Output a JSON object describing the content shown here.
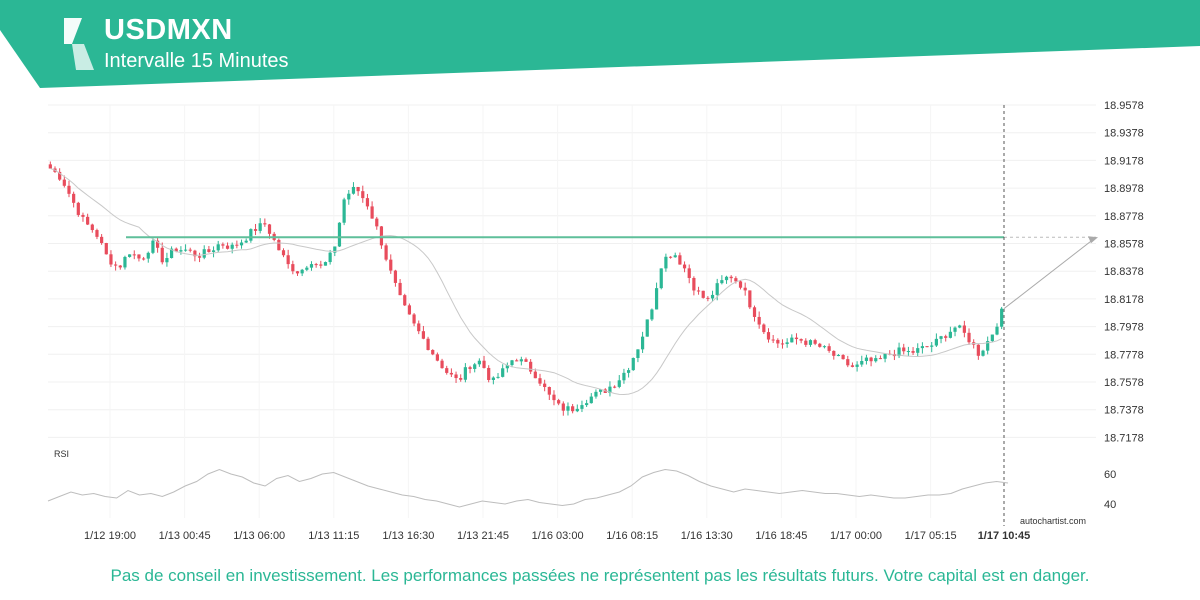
{
  "header": {
    "symbol": "USDMXN",
    "interval": "Intervalle 15 Minutes",
    "brand_color": "#2bb795"
  },
  "chart_data": {
    "type": "candlestick",
    "price_axis_ticks": [
      18.9578,
      18.9378,
      18.9178,
      18.8978,
      18.8778,
      18.8578,
      18.8378,
      18.8178,
      18.7978,
      18.7778,
      18.7578,
      18.7378,
      18.7178
    ],
    "time_axis_labels": [
      "1/12 19:00",
      "1/13 00:45",
      "1/13 06:00",
      "1/13 11:15",
      "1/13 16:30",
      "1/13 21:45",
      "1/16 03:00",
      "1/16 08:15",
      "1/16 13:30",
      "1/16 18:45",
      "1/17 00:00",
      "1/17 05:15"
    ],
    "current_time_label": "1/17 10:45",
    "resistance_level": 18.8623,
    "projection_target": 18.8623,
    "close_path": [
      18.912,
      18.905,
      18.888,
      18.873,
      18.866,
      18.848,
      18.84,
      18.852,
      18.846,
      18.858,
      18.845,
      18.854,
      18.853,
      18.849,
      18.852,
      18.858,
      18.855,
      18.86,
      18.868,
      18.872,
      18.856,
      18.842,
      18.837,
      18.846,
      18.84,
      18.852,
      18.892,
      18.898,
      18.886,
      18.865,
      18.838,
      18.815,
      18.8,
      18.788,
      18.776,
      18.765,
      18.758,
      18.77,
      18.773,
      18.757,
      18.766,
      18.776,
      18.77,
      18.762,
      18.748,
      18.739,
      18.738,
      18.744,
      18.748,
      18.752,
      18.758,
      18.768,
      18.785,
      18.808,
      18.845,
      18.852,
      18.84,
      18.824,
      18.816,
      18.828,
      18.835,
      18.828,
      18.81,
      18.795,
      18.786,
      18.786,
      18.789,
      18.786,
      18.783,
      18.778,
      18.772,
      18.768,
      18.773,
      18.772,
      18.778,
      18.78,
      18.779,
      18.782,
      18.785,
      18.792,
      18.798,
      18.79,
      18.778,
      18.79,
      18.808
    ],
    "rsi": {
      "label": "RSI",
      "axis_ticks": [
        60,
        40
      ],
      "values": [
        42,
        45,
        48,
        46,
        47,
        45,
        44,
        49,
        46,
        47,
        45,
        48,
        52,
        55,
        60,
        63,
        60,
        58,
        54,
        52,
        57,
        59,
        55,
        57,
        60,
        61,
        58,
        55,
        52,
        50,
        48,
        46,
        45,
        43,
        42,
        40,
        38,
        40,
        42,
        41,
        40,
        42,
        43,
        41,
        40,
        39,
        40,
        43,
        44,
        46,
        48,
        52,
        58,
        61,
        63,
        62,
        59,
        55,
        52,
        50,
        48,
        50,
        49,
        48,
        47,
        48,
        49,
        48,
        47,
        47,
        46,
        45,
        46,
        45,
        44,
        44,
        45,
        46,
        46,
        47,
        50,
        52,
        54,
        55,
        54
      ]
    }
  },
  "footer": {
    "watermark": "autochartist.com",
    "disclaimer": "Pas de conseil en investissement. Les performances passées ne représentent pas les résultats futurs. Votre capital est en danger."
  }
}
